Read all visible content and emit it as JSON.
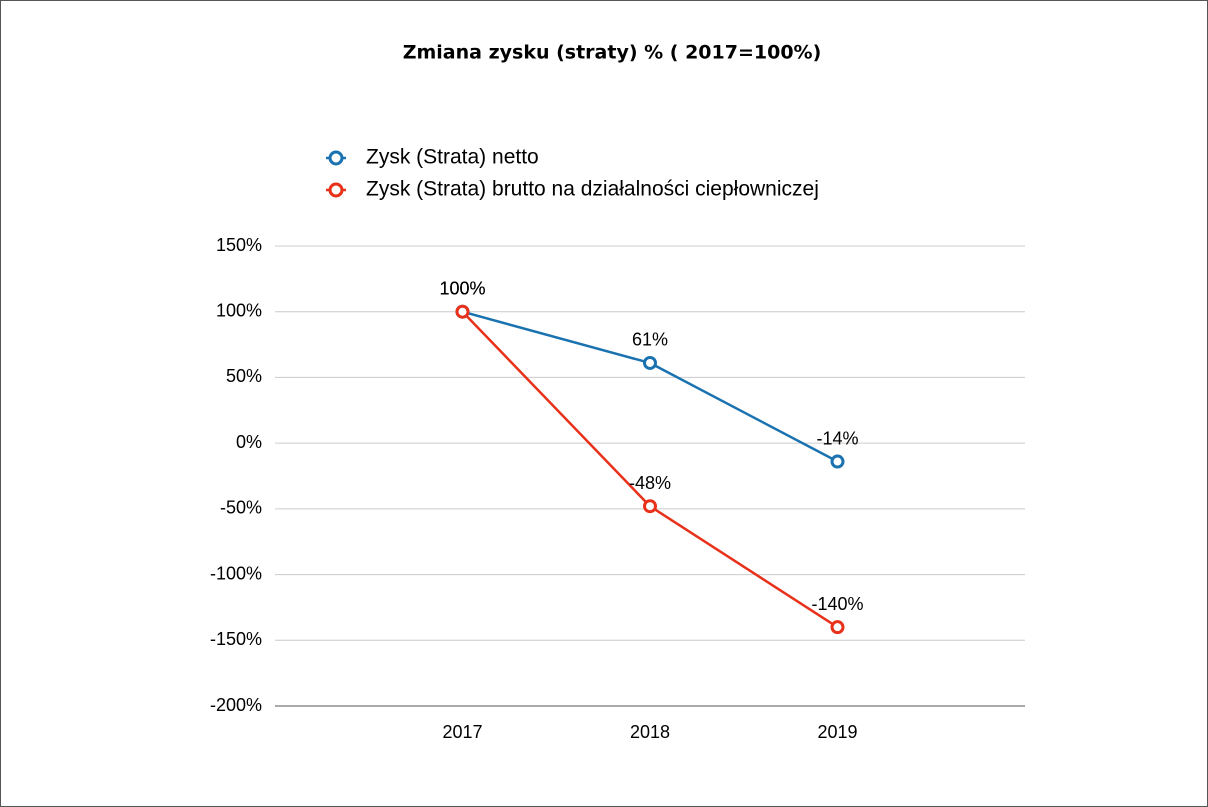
{
  "chart_data": {
    "type": "line",
    "title": "Zmiana zysku (straty) % ( 2017=100%)",
    "categories": [
      "2017",
      "2018",
      "2019"
    ],
    "series": [
      {
        "name": "Zysk (Strata) netto",
        "color": "#1a73b0",
        "values": [
          100,
          61,
          -14
        ],
        "value_labels": [
          "100%",
          "61%",
          "-14%"
        ]
      },
      {
        "name": "Zysk (Strata) brutto na działalności ciepłowniczej",
        "color": "#e8311a",
        "values": [
          100,
          -48,
          -140
        ],
        "value_labels": [
          "100%",
          "-48%",
          "-140%"
        ]
      }
    ],
    "ylim": [
      -200,
      150
    ],
    "yticks": [
      {
        "value": -200,
        "label": "-200%"
      },
      {
        "value": -150,
        "label": "-150%"
      },
      {
        "value": -100,
        "label": "-100%"
      },
      {
        "value": -50,
        "label": "-50%"
      },
      {
        "value": 0,
        "label": "0%"
      },
      {
        "value": 50,
        "label": "50%"
      },
      {
        "value": 100,
        "label": "100%"
      },
      {
        "value": 150,
        "label": "150%"
      }
    ],
    "grid": true
  }
}
